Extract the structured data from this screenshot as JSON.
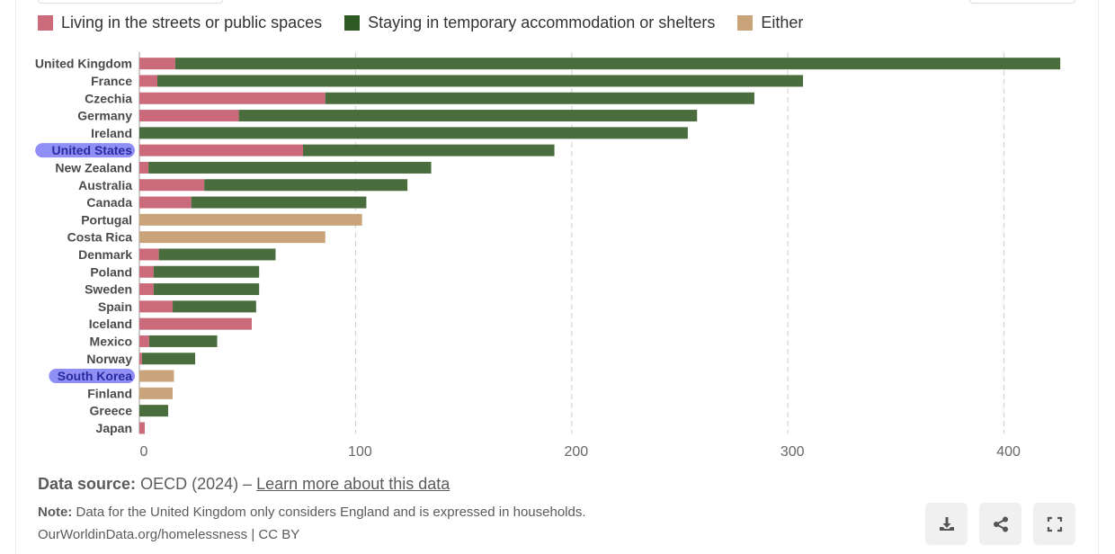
{
  "chart_data": {
    "type": "bar",
    "orientation": "horizontal",
    "stacked": true,
    "categories": [
      "United Kingdom",
      "France",
      "Czechia",
      "Germany",
      "Ireland",
      "United States",
      "New Zealand",
      "Australia",
      "Canada",
      "Portugal",
      "Costa Rica",
      "Denmark",
      "Poland",
      "Sweden",
      "Spain",
      "Iceland",
      "Mexico",
      "Norway",
      "South Korea",
      "Finland",
      "Greece",
      "Japan"
    ],
    "highlighted": [
      "United States",
      "South Korea"
    ],
    "series": [
      {
        "name": "Living in the streets or public spaces",
        "color": "#ca6a7a",
        "values": [
          16.6,
          8.3,
          86,
          46,
          0,
          75.7,
          4.2,
          30,
          24,
          null,
          null,
          9,
          6.6,
          6.6,
          15.4,
          52,
          4.5,
          1.2,
          null,
          null,
          0,
          2.5
        ]
      },
      {
        "name": "Staying in temporary accommodation or shelters",
        "color": "#4a6d3e",
        "values": [
          409.4,
          298.7,
          198.5,
          212,
          253.7,
          116.3,
          130.8,
          94,
          81,
          null,
          null,
          54,
          48.8,
          48.8,
          38.6,
          0,
          31.5,
          24.6,
          null,
          null,
          13.3,
          0
        ]
      },
      {
        "name": "Either",
        "color": "#c9a47a",
        "values": [
          null,
          null,
          null,
          null,
          null,
          null,
          null,
          null,
          null,
          103,
          86,
          null,
          null,
          null,
          null,
          null,
          null,
          null,
          16,
          15.4,
          null,
          null
        ]
      }
    ],
    "xlim": [
      0,
      430
    ],
    "xticks": [
      "0",
      "100",
      "200",
      "300",
      "400"
    ],
    "xtick_values": [
      0,
      100,
      200,
      300,
      400
    ],
    "grid": true,
    "legend_position": "top-left"
  },
  "legend": {
    "items": [
      {
        "label": "Living in the streets or public spaces",
        "color": "#ca6a7a"
      },
      {
        "label": "Staying in temporary accommodation or shelters",
        "color": "#2f5a24"
      },
      {
        "label": "Either",
        "color": "#c9a47a"
      }
    ]
  },
  "footer": {
    "source_label": "Data source:",
    "source_text": "OECD (2024) – ",
    "source_link": "Learn more about this data",
    "note_label": "Note:",
    "note_text": "Data for the United Kingdom only considers England and is expressed in households.",
    "credit": "OurWorldinData.org/homelessness | CC BY"
  },
  "actions": {
    "download_icon": "download-icon",
    "share_icon": "share-icon",
    "fullscreen_icon": "fullscreen-icon"
  },
  "highlight_color": "#8f8ff5"
}
